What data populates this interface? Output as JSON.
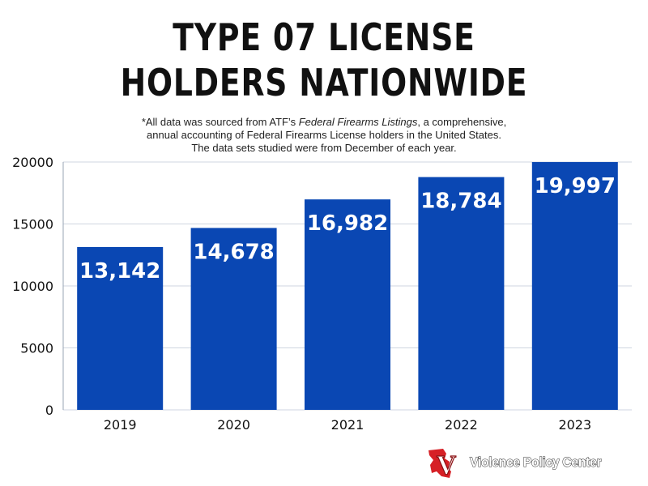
{
  "title_line1": "TYPE 07 LICENSE",
  "title_line2": "HOLDERS NATIONWIDE",
  "note": {
    "line1_prefix": "*All data was sourced from ATF’s ",
    "line1_italic": "Federal Firearms Listings",
    "line1_suffix": ", a comprehensive,",
    "line2": "annual accounting of Federal Firearms License holders in the United States.",
    "line3": "The data sets studied were from December of each year."
  },
  "logo": {
    "text": "Violence Policy Center",
    "mark_letter": "V",
    "icon": "vpc-logo-icon"
  },
  "colors": {
    "bar": "#0a47b3",
    "grid": "#cfd6e0",
    "bar_label": "#ffffff",
    "text": "#111111",
    "logo_red": "#d62026"
  },
  "chart_data": {
    "type": "bar",
    "categories": [
      "2019",
      "2020",
      "2021",
      "2022",
      "2023"
    ],
    "values": [
      13142,
      14678,
      16982,
      18784,
      19997
    ],
    "value_labels": [
      "13,142",
      "14,678",
      "16,982",
      "18,784",
      "19,997"
    ],
    "yticks": [
      0,
      5000,
      10000,
      15000,
      20000
    ],
    "ylim": [
      0,
      20000
    ],
    "grid": true,
    "title": "TYPE 07 LICENSE HOLDERS NATIONWIDE",
    "xlabel": "",
    "ylabel": ""
  }
}
